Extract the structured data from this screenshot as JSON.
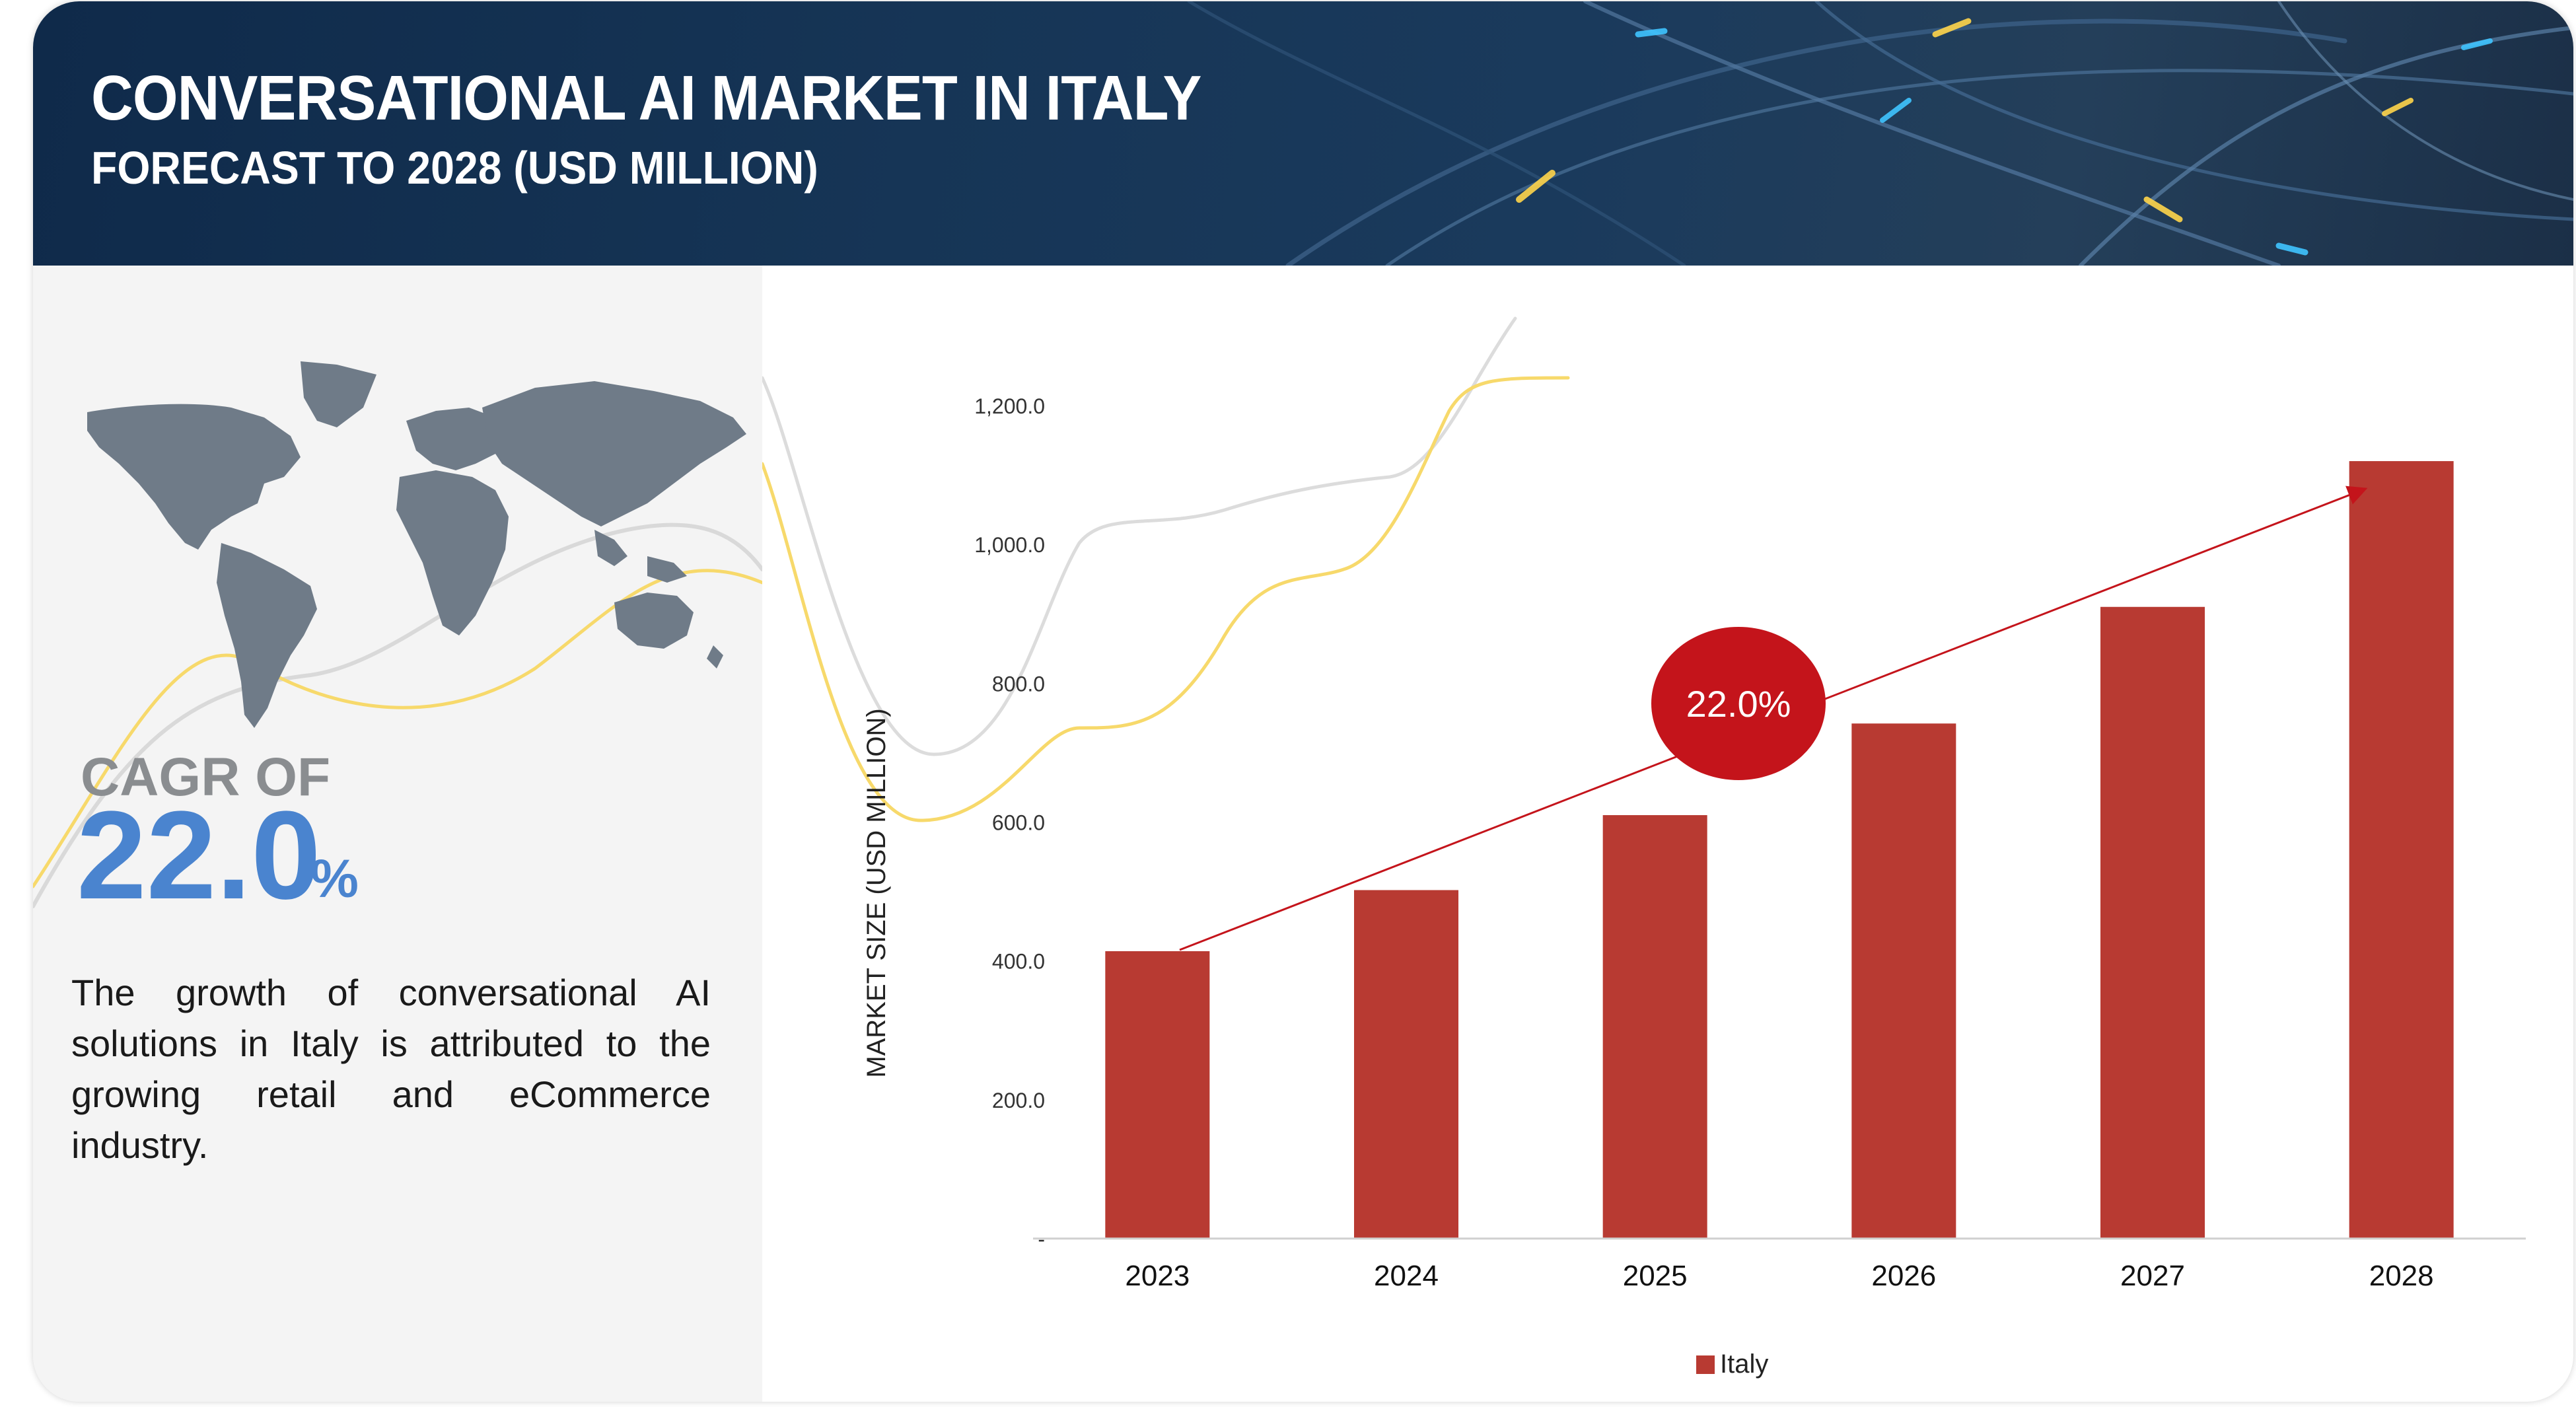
{
  "header": {
    "title": "CONVERSATIONAL AI MARKET IN ITALY",
    "subtitle": "FORECAST TO 2028 (USD MILLION)"
  },
  "summary": {
    "cagr_label": "CAGR OF",
    "cagr_value": "22.0",
    "cagr_unit": "%",
    "description": "The growth of conversational AI solutions in Italy is attributed to the growing retail and eCommerce industry."
  },
  "colors": {
    "bar": "#b83a32",
    "accent_blue": "#4a84cf",
    "header_bg": "#163556",
    "cagr_badge": "#c4141b"
  },
  "icons": [
    "world-map-icon"
  ],
  "chart_data": {
    "type": "bar",
    "ylabel": "MARKET SIZE (USD MILLION)",
    "ylim": [
      0,
      1200
    ],
    "yticks": [
      0,
      200,
      400,
      600,
      800,
      1000,
      1200
    ],
    "ytick_labels": [
      "-",
      "200.0",
      "400.0",
      "600.0",
      "800.0",
      "1,000.0",
      "1,200.0"
    ],
    "categories": [
      "2023",
      "2024",
      "2025",
      "2026",
      "2027",
      "2028"
    ],
    "series": [
      {
        "name": "Italy",
        "values": [
          414,
          502,
          610,
          742,
          910,
          1120
        ]
      }
    ],
    "annotation": "22.0%",
    "legend_position": "bottom",
    "grid": false
  }
}
